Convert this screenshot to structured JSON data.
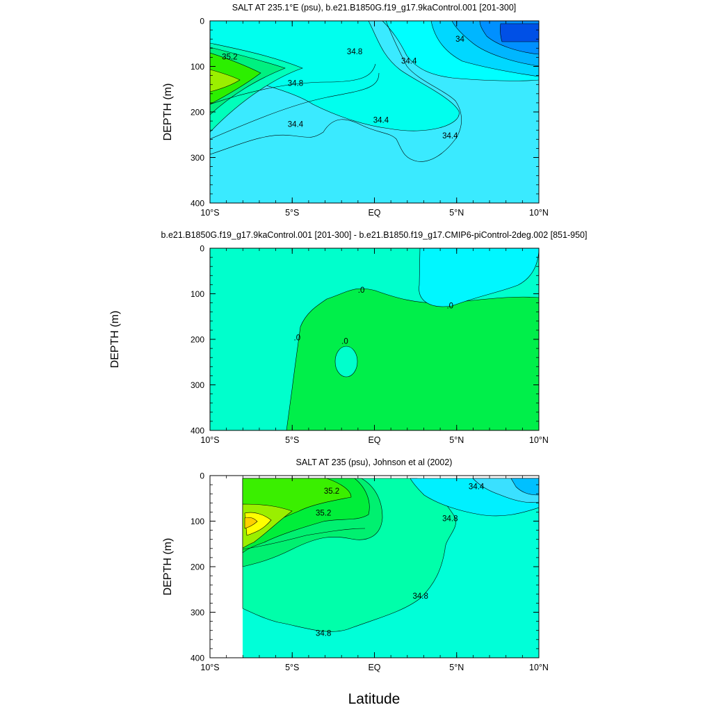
{
  "figure": {
    "x_axis_label": "Latitude",
    "x_tick_labels": [
      "10°S",
      "5°S",
      "EQ",
      "5°N",
      "10°N"
    ]
  },
  "chart_data": [
    {
      "type": "contour",
      "title": "SALT AT 235.1°E (psu), b.e21.B1850G.f19_g17.9kaControl.001 [201-300]",
      "xlabel": "",
      "ylabel": "DEPTH (m)",
      "x_ticks": [
        -10,
        -5,
        0,
        5,
        10
      ],
      "y_ticks": [
        0,
        100,
        200,
        300,
        400
      ],
      "y_tick_labels": [
        "0",
        "100",
        "200",
        "300",
        "400"
      ],
      "xlim": [
        -10,
        10
      ],
      "ylim": [
        400,
        0
      ],
      "contour_labels": [
        {
          "text": "35.2",
          "x": -8.8,
          "y": 85
        },
        {
          "text": "34.8",
          "x": -4.8,
          "y": 143
        },
        {
          "text": "34.8",
          "x": -1.2,
          "y": 73
        },
        {
          "text": "34.4",
          "x": -4.8,
          "y": 233
        },
        {
          "text": "34.4",
          "x": 0.4,
          "y": 224
        },
        {
          "text": "34.4",
          "x": 2.1,
          "y": 94
        },
        {
          "text": "34.4",
          "x": 4.6,
          "y": 258
        },
        {
          "text": "34",
          "x": 5.2,
          "y": 46
        }
      ]
    },
    {
      "type": "contour",
      "title": "b.e21.B1850G.f19_g17.9kaControl.001 [201-300] - b.e21.B1850.f19_g17.CMIP6-piControl-2deg.002 [851-950]",
      "xlabel": "",
      "ylabel": "DEPTH (m)",
      "x_ticks": [
        -10,
        -5,
        0,
        5,
        10
      ],
      "y_ticks": [
        0,
        100,
        200,
        300,
        400
      ],
      "y_tick_labels": [
        "0",
        "100",
        "200",
        "300",
        "400"
      ],
      "xlim": [
        -10,
        10
      ],
      "ylim": [
        400,
        0
      ],
      "contour_labels": [
        {
          "text": ".0",
          "x": -0.8,
          "y": 98
        },
        {
          "text": ".0",
          "x": 4.6,
          "y": 132
        },
        {
          "text": ".0",
          "x": -4.7,
          "y": 202
        },
        {
          "text": ".0",
          "x": -1.8,
          "y": 210
        }
      ]
    },
    {
      "type": "contour",
      "title": "SALT AT 235 (psu), Johnson et al (2002)",
      "xlabel": "",
      "ylabel": "DEPTH (m)",
      "x_ticks": [
        -10,
        -5,
        0,
        5,
        10
      ],
      "y_ticks": [
        0,
        100,
        200,
        300,
        400
      ],
      "y_tick_labels": [
        "0",
        "100",
        "200",
        "300",
        "400"
      ],
      "xlim": [
        -10,
        10
      ],
      "ylim": [
        400,
        0
      ],
      "contour_labels": [
        {
          "text": "35.2",
          "x": -2.6,
          "y": 40
        },
        {
          "text": "35.2",
          "x": -3.1,
          "y": 88
        },
        {
          "text": "34.4",
          "x": 6.2,
          "y": 30
        },
        {
          "text": "34.8",
          "x": 4.6,
          "y": 100
        },
        {
          "text": "34.8",
          "x": 2.8,
          "y": 270
        },
        {
          "text": "34.8",
          "x": -3.1,
          "y": 352
        }
      ]
    }
  ]
}
